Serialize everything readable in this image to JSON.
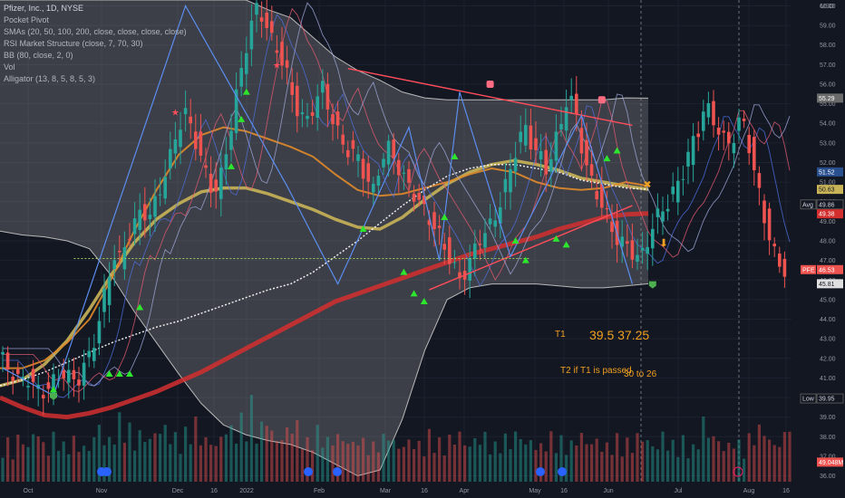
{
  "legend": {
    "title": "Pfizer, Inc., 1D, NYSE",
    "indicators": [
      "Pocket Pivot",
      "SMAs (20, 50, 100, 200, close, close, close, close)",
      "RSI Market Structure (close, 7, 70, 30)",
      "BB (80, close, 2, 0)",
      "Vol",
      "Alligator (13, 8, 5, 8, 5, 3)"
    ]
  },
  "annotations": {
    "t1_label": "T1",
    "t1_values": "39.5  37.25",
    "t2_label": "T2 if T1 is passed",
    "t2_values": "30 to 26"
  },
  "colors": {
    "background": "#131722",
    "up": "#26a69a",
    "down": "#ef5350",
    "sma200": "#d32f2f",
    "sma100": "#c9b458",
    "sma50": "#e08a2a",
    "sma20": "#ffffff",
    "bb": "#b8b8b8",
    "trendline": "#ff4d5a",
    "target_text": "#f0a020",
    "support_line": "#9ccc65"
  },
  "chart_data": {
    "type": "candlestick",
    "symbol": "PFE",
    "yaxis": {
      "ticks": [
        36,
        37,
        38,
        39,
        40,
        41,
        42,
        43,
        44,
        45,
        46,
        47,
        48,
        49,
        50,
        51,
        52,
        53,
        54,
        55,
        56,
        57,
        58,
        59,
        60
      ],
      "currency": "USD",
      "ylim": [
        35.7,
        60.3
      ]
    },
    "xaxis": {
      "ticks": [
        "Oct",
        "Nov",
        "Dec",
        "16",
        "2022",
        "Feb",
        "Mar",
        "16",
        "Apr",
        "May",
        "16",
        "Jun",
        "Jul",
        "Aug",
        "16"
      ]
    },
    "price_tags": [
      {
        "label": "USD",
        "value": 60.0,
        "kind": "currency"
      },
      {
        "label": "55.29",
        "value": 55.29,
        "kind": "bb_upper"
      },
      {
        "label": "51.52",
        "value": 51.52,
        "kind": "sma"
      },
      {
        "label": "50.63",
        "value": 50.63,
        "kind": "sma100"
      },
      {
        "label": "Avg",
        "value": 49.86,
        "kind": "avg"
      },
      {
        "label": "49.86",
        "value": 49.86,
        "kind": "avg"
      },
      {
        "label": "49.38",
        "value": 49.38,
        "kind": "sma200"
      },
      {
        "label": "PFE",
        "value": 46.53,
        "kind": "symbol"
      },
      {
        "label": "46.53",
        "value": 46.53,
        "kind": "last"
      },
      {
        "label": "45.81",
        "value": 45.81,
        "kind": "bb_lower"
      },
      {
        "label": "Low",
        "value": 39.95,
        "kind": "low"
      },
      {
        "label": "39.95",
        "value": 39.95,
        "kind": "low"
      },
      {
        "label": "49.048M",
        "value": 36.7,
        "kind": "volume"
      }
    ],
    "series": [
      {
        "name": "price",
        "values": [
          42.2,
          41.8,
          41.2,
          40.8,
          41.1,
          40.6,
          40.2,
          40.5,
          40.9,
          41.3,
          41.0,
          40.8,
          41.6,
          42.4,
          43.8,
          45.6,
          47.3,
          47.0,
          48.2,
          48.9,
          49.6,
          49.2,
          50.1,
          51.2,
          52.4,
          53.8,
          54.5,
          53.6,
          52.4,
          51.2,
          50.4,
          51.4,
          53.2,
          55.3,
          57.2,
          58.9,
          60.0,
          59.2,
          58.2,
          57.6,
          56.6,
          55.1,
          54.4,
          54.1,
          55.2,
          55.8,
          54.6,
          53.6,
          52.8,
          52.5,
          52.2,
          51.2,
          50.5,
          52.0,
          52.8,
          52.2,
          51.3,
          50.8,
          50.2,
          49.6,
          49.0,
          48.4,
          47.6,
          46.8,
          46.0,
          46.6,
          47.5,
          48.3,
          48.6,
          49.3,
          50.4,
          51.6,
          53.0,
          53.8,
          52.9,
          52.4,
          51.6,
          52.8,
          53.9,
          55.6,
          54.6,
          52.6,
          51.2,
          50.4,
          49.6,
          48.6,
          48.0,
          47.8,
          47.4,
          47.0,
          48.0,
          49.0,
          49.6,
          50.0,
          50.8,
          51.6,
          52.8,
          53.6,
          55.0,
          54.2,
          53.6,
          52.8,
          53.4,
          54.4,
          53.0,
          51.2,
          49.4,
          48.1,
          46.8,
          46.53
        ]
      },
      {
        "name": "sma200",
        "values": [
          40.0,
          39.5,
          39.1,
          39.0,
          39.2,
          39.5,
          39.9,
          40.3,
          40.8,
          41.3,
          41.9,
          42.5,
          43.1,
          43.7,
          44.3,
          44.9,
          45.3,
          45.7,
          46.1,
          46.5,
          46.9,
          47.3,
          47.6,
          47.9,
          48.2,
          48.6,
          48.9,
          49.2,
          49.35,
          49.4
        ]
      },
      {
        "name": "sma100",
        "values": [
          40.6,
          40.9,
          41.7,
          42.9,
          44.5,
          46.3,
          47.9,
          49.1,
          49.9,
          50.5,
          50.7,
          50.7,
          50.4,
          50.0,
          49.6,
          49.1,
          48.7,
          48.6,
          49.2,
          50.1,
          50.9,
          51.5,
          51.9,
          52.1,
          51.9,
          51.6,
          51.2,
          51.0,
          50.8,
          50.63
        ]
      },
      {
        "name": "sma50",
        "values": [
          41.5,
          41.5,
          41.9,
          42.8,
          44.0,
          46.1,
          48.5,
          50.6,
          52.4,
          53.4,
          53.8,
          53.6,
          53.2,
          52.8,
          52.3,
          51.4,
          50.6,
          50.3,
          50.4,
          50.7,
          51.0,
          51.4,
          51.7,
          51.5,
          51.0,
          50.7,
          50.6,
          50.7,
          51.0,
          50.8
        ]
      },
      {
        "name": "sma20",
        "values": [
          40.6,
          40.9,
          41.3,
          41.8,
          42.3,
          42.8,
          43.2,
          43.6,
          43.9,
          44.3,
          44.7,
          45.1,
          45.5,
          45.8,
          46.4,
          47.2,
          48.0,
          48.9,
          49.8,
          50.6,
          51.3,
          51.7,
          51.9,
          51.9,
          51.7,
          51.5,
          51.1,
          50.9,
          50.7,
          50.63
        ]
      },
      {
        "name": "bb_upper",
        "values": [
          60.3,
          60.3,
          60.3,
          60.3,
          60.3,
          60.3,
          60.3,
          60.3,
          60.3,
          60.3,
          60.3,
          60.3,
          59.8,
          59.4,
          58.4,
          57.4,
          56.7,
          56.2,
          55.6,
          55.3,
          55.2,
          55.2,
          55.2,
          55.2,
          55.2,
          55.2,
          55.2,
          55.2,
          55.3,
          55.29
        ]
      },
      {
        "name": "bb_lower",
        "values": [
          48.5,
          48.3,
          48.2,
          48.0,
          47.6,
          46.2,
          44.4,
          42.8,
          41.2,
          39.7,
          38.6,
          38.1,
          37.8,
          37.6,
          37.2,
          36.6,
          36.0,
          36.3,
          38.9,
          42.4,
          45.0,
          45.6,
          45.8,
          45.8,
          45.8,
          45.7,
          45.6,
          45.6,
          45.7,
          45.81
        ]
      },
      {
        "name": "volume",
        "values": [
          21,
          16,
          23,
          18,
          26,
          20,
          17,
          24,
          19,
          22,
          20,
          18,
          24,
          30,
          22,
          26,
          33,
          28,
          23,
          25,
          22,
          27,
          29,
          24,
          21,
          26,
          31,
          25,
          22,
          19,
          24,
          28,
          26,
          33,
          41,
          29,
          36,
          26,
          23,
          28,
          30,
          24,
          21,
          27,
          24,
          22,
          25,
          22,
          20,
          24,
          21,
          19,
          23,
          27,
          21,
          19,
          22,
          20,
          18,
          25,
          21,
          19,
          23,
          26,
          20,
          22,
          24,
          21,
          19,
          23,
          22,
          25,
          20,
          22,
          19,
          21,
          24,
          22,
          20,
          23,
          25,
          21,
          22,
          19,
          20,
          23,
          21,
          20,
          24,
          22,
          19,
          25,
          21,
          20,
          22,
          18,
          21,
          33,
          25,
          21,
          19,
          24,
          20,
          23,
          26,
          28,
          22,
          20,
          25,
          33
        ]
      }
    ],
    "trendlines": [
      {
        "name": "upper_resistance",
        "from": {
          "x": 68,
          "y": 56.8
        },
        "to": {
          "x": 124,
          "y": 53.9
        }
      },
      {
        "name": "lower_support",
        "from": {
          "x": 84,
          "y": 45.5
        },
        "to": {
          "x": 124,
          "y": 49.8
        }
      },
      {
        "name": "horizontal_support",
        "from": {
          "x": 14,
          "y": 47.1
        },
        "to": {
          "x": 104,
          "y": 47.1
        }
      }
    ],
    "legend_position": "top-left",
    "grid": true
  }
}
